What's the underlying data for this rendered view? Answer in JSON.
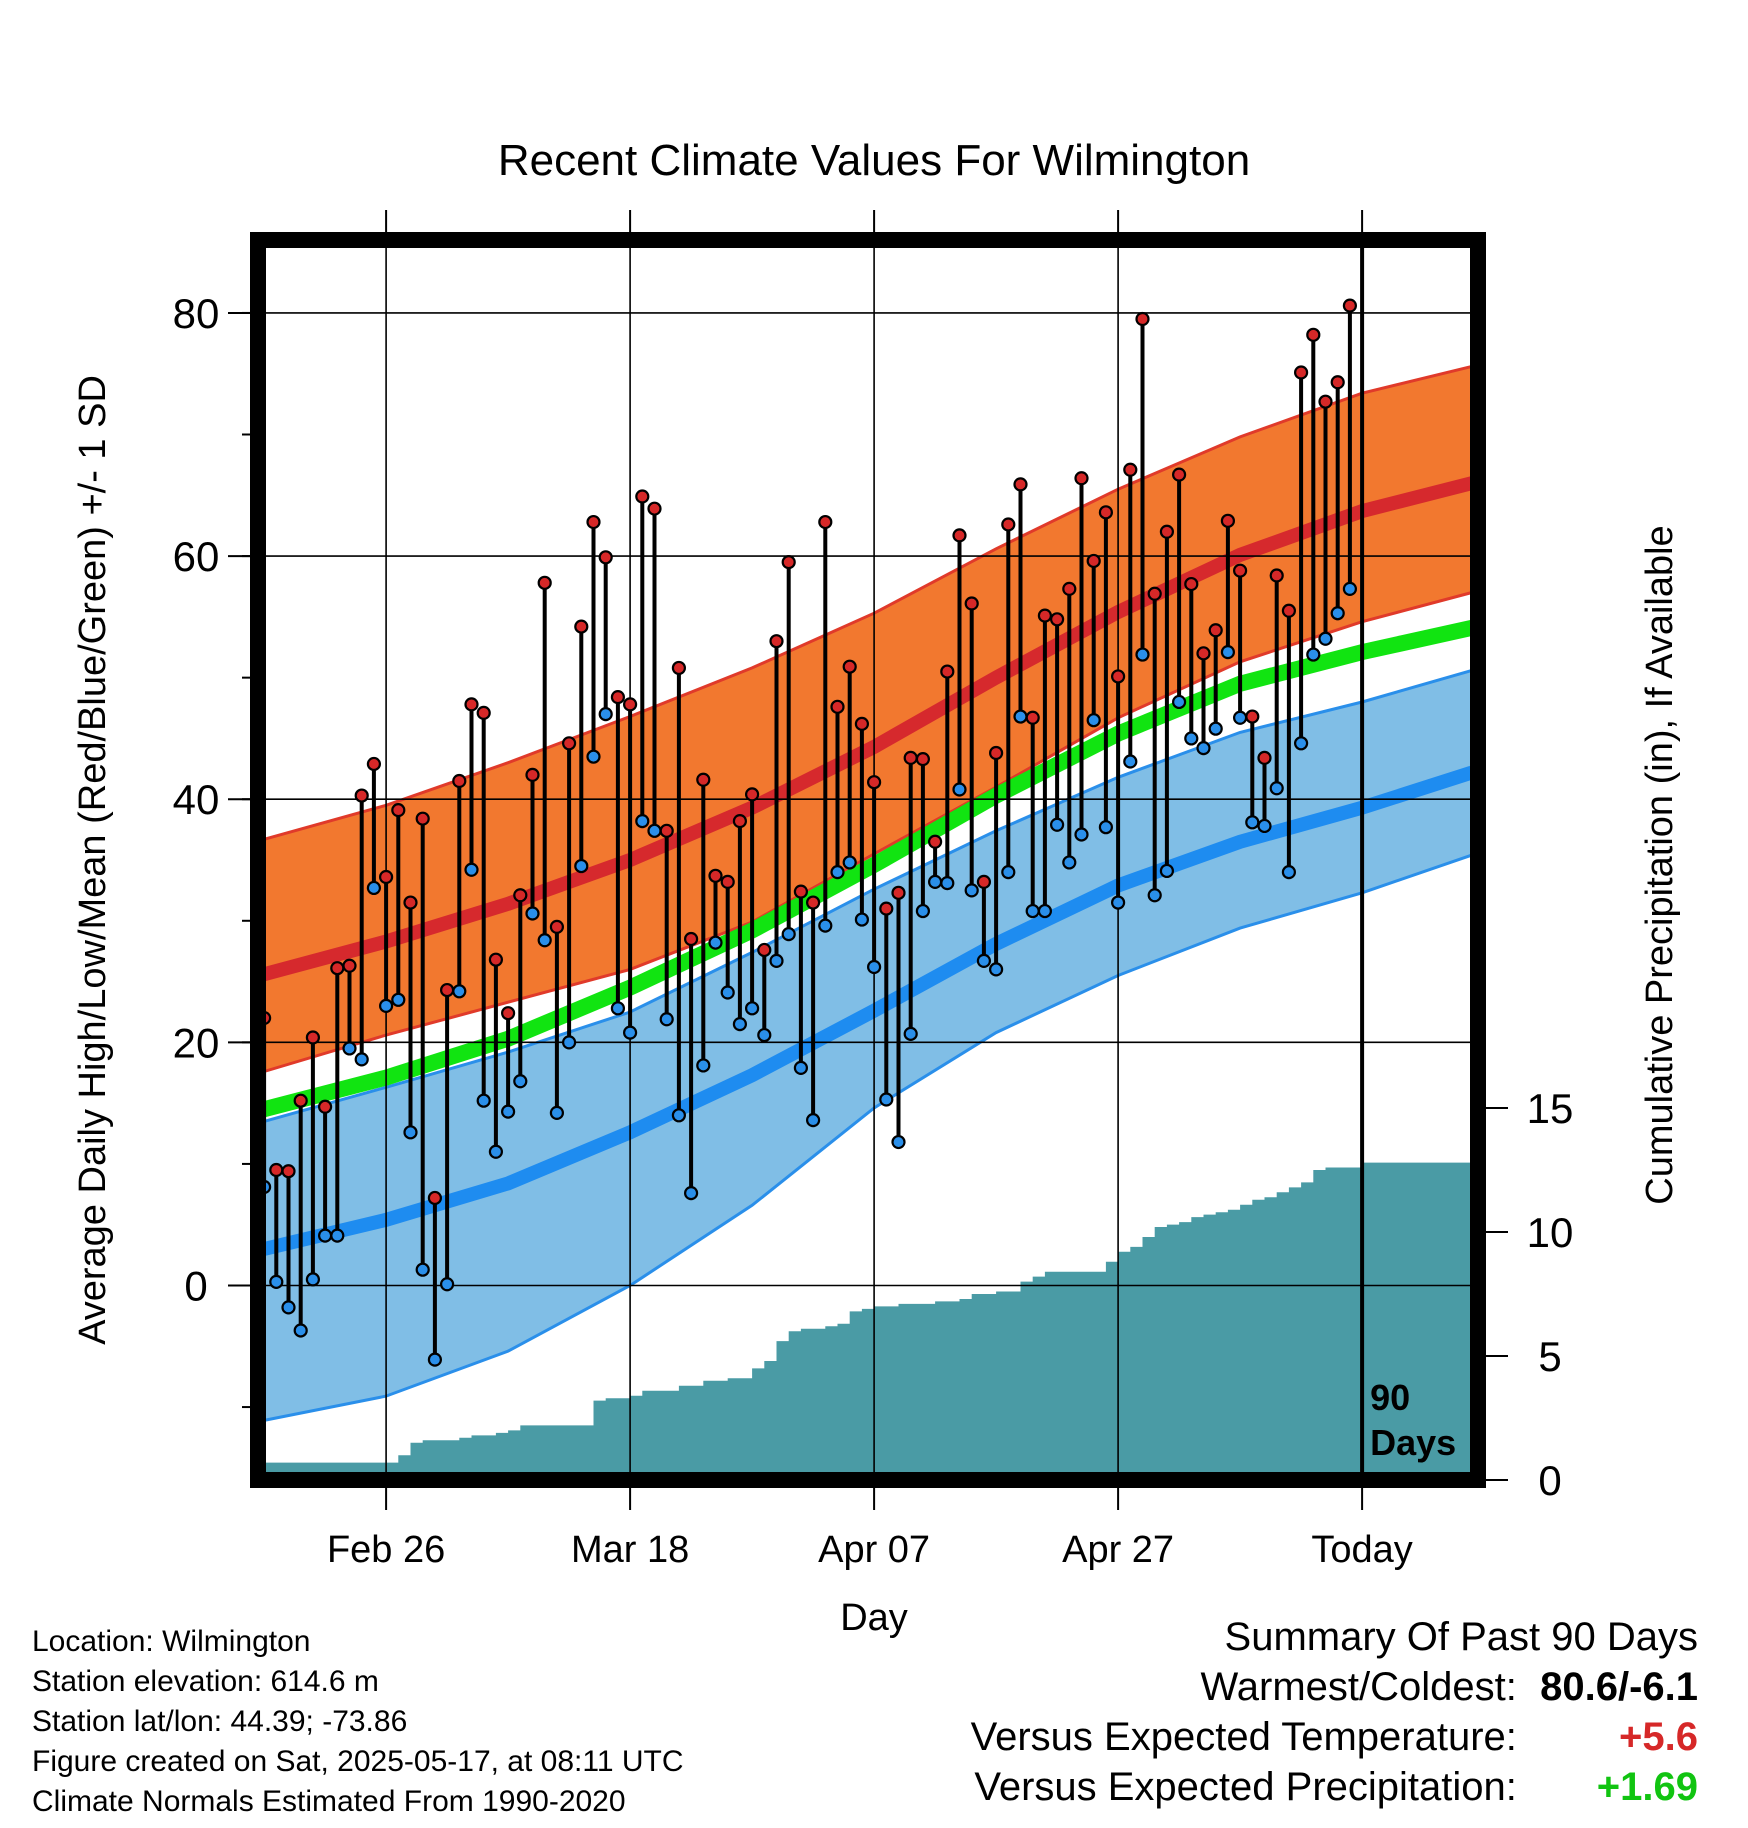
{
  "colors": {
    "high_band": "#F2782F",
    "high_band_edge": "#E03A2A",
    "high_mean": "#D6292D",
    "high_below_low": "#9A1114",
    "low_band": "#80BEE6",
    "low_band_edge": "#2A8FEA",
    "low_mean": "#1E8CF0",
    "mean_line": "#11E411",
    "precip_fill": "#4A9BA5",
    "high_dot": "#D62828",
    "low_dot": "#2A8FEA",
    "frame": "#000000",
    "temp_anomaly": "#D62828",
    "precip_anomaly": "#11C411"
  },
  "chart_data": {
    "type": "line",
    "title": "Recent Climate Values For Wilmington",
    "xlabel": "Day",
    "ylabel": "Average Daily High/Low/Mean (Red/Blue/Green) +/- 1 SD",
    "y2label": "Cumulative Precipitation (in), If Available",
    "xlim": [
      -0.5,
      99.5
    ],
    "ylim": [
      -16,
      86
    ],
    "y2lim": [
      0,
      50
    ],
    "yticks": [
      "0",
      "20",
      "40",
      "60",
      "80"
    ],
    "y2ticks": [
      "0",
      "5",
      "10",
      "15"
    ],
    "xticks": [
      {
        "day": 10,
        "label": "Feb 26"
      },
      {
        "day": 30,
        "label": "Mar 18"
      },
      {
        "day": 50,
        "label": "Apr 07"
      },
      {
        "day": 70,
        "label": "Apr 27"
      },
      {
        "day": 90,
        "label": "Today"
      }
    ],
    "today_marker": {
      "day": 90,
      "label_line1": "90",
      "label_line2": "Days"
    },
    "grid": true,
    "normals_days": [
      0,
      10,
      20,
      30,
      40,
      50,
      60,
      70,
      80,
      90,
      99
    ],
    "normal_high_upper": [
      36.7,
      39.5,
      43.0,
      46.8,
      50.8,
      55.3,
      60.6,
      65.5,
      69.8,
      73.4,
      75.6
    ],
    "normal_high_mean": [
      25.6,
      28.3,
      31.4,
      35.0,
      39.3,
      44.3,
      50.0,
      55.4,
      60.1,
      63.7,
      66.0
    ],
    "normal_high_lower": [
      17.6,
      20.6,
      23.3,
      26.0,
      29.9,
      35.5,
      41.0,
      46.7,
      51.3,
      54.6,
      57.0
    ],
    "normal_mean": [
      14.5,
      17.1,
      20.3,
      24.5,
      29.2,
      34.6,
      40.3,
      45.4,
      49.5,
      52.1,
      54.1
    ],
    "normal_low_upper": [
      13.5,
      16.3,
      19.2,
      22.5,
      27.4,
      32.6,
      37.4,
      41.8,
      45.5,
      48.0,
      50.6
    ],
    "normal_low_mean": [
      3.0,
      5.4,
      8.4,
      12.6,
      17.3,
      22.6,
      28.1,
      32.9,
      36.5,
      39.3,
      42.2
    ],
    "normal_low_lower": [
      -11.1,
      -9.1,
      -5.4,
      0.0,
      6.6,
      14.6,
      20.8,
      25.5,
      29.4,
      32.3,
      35.4
    ],
    "series": [
      {
        "name": "High",
        "x": [
          0,
          1,
          2,
          3,
          4,
          5,
          6,
          7,
          8,
          9,
          10,
          11,
          12,
          13,
          14,
          15,
          16,
          17,
          18,
          19,
          20,
          21,
          22,
          23,
          24,
          25,
          26,
          27,
          28,
          29,
          30,
          31,
          32,
          33,
          34,
          35,
          36,
          37,
          38,
          39,
          40,
          41,
          42,
          43,
          44,
          45,
          46,
          47,
          48,
          49,
          50,
          51,
          52,
          53,
          54,
          55,
          56,
          57,
          58,
          59,
          60,
          61,
          62,
          63,
          64,
          65,
          66,
          67,
          68,
          69,
          70,
          71,
          72,
          73,
          74,
          75,
          76,
          77,
          78,
          79,
          80,
          81,
          82,
          83,
          84,
          85,
          86,
          87,
          88,
          89
        ],
        "values": [
          22.0,
          9.5,
          9.4,
          15.2,
          20.4,
          14.7,
          26.1,
          26.3,
          40.3,
          42.9,
          33.6,
          39.1,
          31.5,
          38.4,
          7.2,
          24.3,
          41.5,
          47.8,
          47.1,
          26.8,
          22.4,
          32.1,
          42.0,
          57.8,
          29.5,
          44.6,
          54.2,
          62.8,
          59.9,
          48.4,
          47.8,
          64.9,
          63.9,
          37.4,
          50.8,
          28.5,
          41.6,
          33.7,
          33.2,
          38.2,
          40.4,
          27.6,
          53.0,
          59.5,
          32.4,
          31.5,
          62.8,
          47.6,
          50.9,
          46.2,
          41.4,
          31.0,
          32.3,
          43.4,
          43.3,
          36.5,
          50.5,
          61.7,
          56.1,
          33.2,
          43.8,
          62.6,
          65.9,
          46.7,
          55.1,
          54.8,
          57.3,
          66.4,
          59.6,
          63.6,
          50.1,
          67.1,
          79.5,
          56.9,
          62.0,
          66.7,
          57.7,
          52.0,
          53.9,
          62.9,
          58.8,
          46.8,
          43.4,
          58.4,
          55.5,
          75.1,
          78.2,
          72.7,
          74.3,
          80.6
        ]
      },
      {
        "name": "Low",
        "x": [
          0,
          1,
          2,
          3,
          4,
          5,
          6,
          7,
          8,
          9,
          10,
          11,
          12,
          13,
          14,
          15,
          16,
          17,
          18,
          19,
          20,
          21,
          22,
          23,
          24,
          25,
          26,
          27,
          28,
          29,
          30,
          31,
          32,
          33,
          34,
          35,
          36,
          37,
          38,
          39,
          40,
          41,
          42,
          43,
          44,
          45,
          46,
          47,
          48,
          49,
          50,
          51,
          52,
          53,
          54,
          55,
          56,
          57,
          58,
          59,
          60,
          61,
          62,
          63,
          64,
          65,
          66,
          67,
          68,
          69,
          70,
          71,
          72,
          73,
          74,
          75,
          76,
          77,
          78,
          79,
          80,
          81,
          82,
          83,
          84,
          85,
          86,
          87,
          88,
          89
        ],
        "values": [
          8.1,
          0.3,
          -1.8,
          -3.7,
          0.5,
          4.1,
          4.1,
          19.5,
          18.6,
          32.7,
          23.0,
          23.5,
          12.6,
          1.3,
          -6.1,
          0.1,
          24.2,
          34.2,
          15.2,
          11.0,
          14.3,
          16.8,
          30.6,
          28.4,
          14.2,
          20.0,
          34.5,
          43.5,
          47.0,
          22.8,
          20.8,
          38.2,
          37.4,
          21.9,
          14.0,
          7.6,
          18.1,
          28.2,
          24.1,
          21.5,
          22.8,
          20.6,
          26.7,
          28.9,
          17.9,
          13.6,
          29.6,
          34.0,
          34.8,
          30.1,
          26.2,
          15.3,
          11.8,
          20.7,
          30.8,
          33.2,
          33.1,
          40.8,
          32.5,
          26.7,
          26.0,
          34.0,
          46.8,
          30.8,
          30.8,
          37.9,
          34.8,
          37.1,
          46.5,
          37.7,
          31.5,
          43.1,
          51.9,
          32.1,
          34.1,
          48.0,
          45.0,
          44.2,
          45.8,
          52.1,
          46.7,
          38.1,
          37.8,
          40.9,
          34.0,
          44.6,
          51.9,
          53.2,
          55.3,
          57.3
        ]
      },
      {
        "name": "Cumulative Precipitation",
        "x": [
          0,
          10,
          11,
          12,
          13,
          14,
          15,
          16,
          17,
          18,
          19,
          20,
          21,
          22,
          23,
          24,
          25,
          26,
          27,
          28,
          29,
          30,
          31,
          32,
          33,
          34,
          35,
          36,
          37,
          38,
          39,
          40,
          41,
          42,
          43,
          44,
          45,
          46,
          47,
          48,
          49,
          50,
          51,
          52,
          53,
          54,
          55,
          56,
          57,
          58,
          59,
          60,
          61,
          62,
          63,
          64,
          65,
          66,
          67,
          68,
          69,
          70,
          71,
          72,
          73,
          74,
          75,
          76,
          77,
          78,
          79,
          80,
          81,
          82,
          83,
          84,
          85,
          86,
          87,
          88,
          89,
          90,
          99
        ],
        "values": [
          0.7,
          0.7,
          1.0,
          1.5,
          1.6,
          1.6,
          1.6,
          1.7,
          1.8,
          1.8,
          1.9,
          2.0,
          2.2,
          2.2,
          2.2,
          2.2,
          2.2,
          2.2,
          3.2,
          3.3,
          3.3,
          3.4,
          3.6,
          3.6,
          3.6,
          3.8,
          3.8,
          4.0,
          4.0,
          4.1,
          4.1,
          4.5,
          4.8,
          5.6,
          6.0,
          6.1,
          6.1,
          6.2,
          6.3,
          6.8,
          6.9,
          7.0,
          7.0,
          7.1,
          7.1,
          7.1,
          7.2,
          7.2,
          7.3,
          7.5,
          7.5,
          7.6,
          7.6,
          8.0,
          8.2,
          8.4,
          8.4,
          8.4,
          8.4,
          8.4,
          8.8,
          9.2,
          9.4,
          9.8,
          10.2,
          10.3,
          10.4,
          10.6,
          10.7,
          10.8,
          10.9,
          11.1,
          11.3,
          11.4,
          11.6,
          11.8,
          12.0,
          12.5,
          12.6,
          12.6,
          12.6,
          12.8,
          12.8
        ]
      }
    ]
  },
  "info": {
    "location": "Location: Wilmington",
    "elevation": "Station elevation: 614.6 m",
    "latlon": "Station lat/lon: 44.39; -73.86",
    "created": "Figure created on Sat, 2025-05-17, at 08:11 UTC",
    "normals": "Climate Normals Estimated From 1990-2020"
  },
  "summary": {
    "title": "Summary Of Past 90 Days",
    "warm_cold_label": "Warmest/Coldest:",
    "warm_cold_value": "80.6/-6.1",
    "temp_label": "Versus Expected Temperature:",
    "temp_value": "+5.6",
    "precip_label": "Versus Expected Precipitation:",
    "precip_value": "+1.69"
  }
}
